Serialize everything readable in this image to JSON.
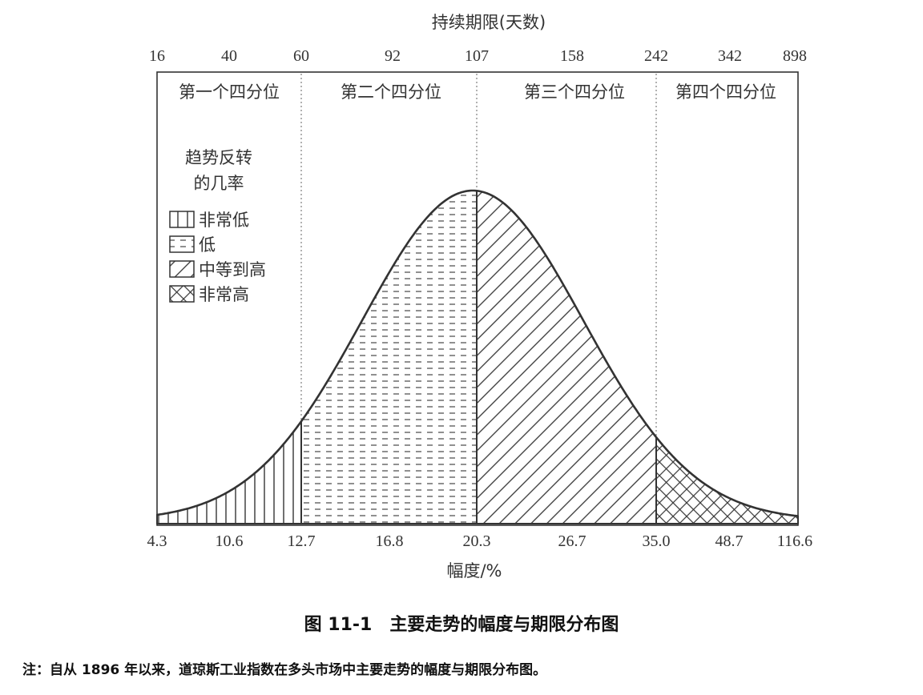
{
  "chart_data": {
    "type": "area",
    "top_axis_title": "持续期限(天数)",
    "top_ticks": [
      "16",
      "40",
      "60",
      "92",
      "107",
      "158",
      "242",
      "342",
      "898"
    ],
    "x_axis_title": "幅度/%",
    "bottom_ticks": [
      "4.3",
      "10.6",
      "12.7",
      "16.8",
      "20.3",
      "26.7",
      "35.0",
      "48.7",
      "116.6"
    ],
    "quartiles": [
      "第一个四分位",
      "第二个四分位",
      "第三个四分位",
      "第四个四分位"
    ],
    "quartile_boundary_ticks": [
      "12.7",
      "20.3",
      "35.0"
    ],
    "distribution": "bell-shaped (normal) curve peaking at 20.3",
    "legend_title_lines": [
      "趋势反转",
      "的几率"
    ],
    "legend": [
      {
        "label": "非常低",
        "pattern": "vertical-lines"
      },
      {
        "label": "低",
        "pattern": "dashes"
      },
      {
        "label": "中等到高",
        "pattern": "diagonal-lines"
      },
      {
        "label": "非常高",
        "pattern": "crosshatch"
      }
    ],
    "segment_patterns": [
      "vertical-lines",
      "dashes",
      "diagonal-lines",
      "crosshatch"
    ],
    "grid": false,
    "legend_position": "left"
  },
  "caption": "图 11-1　主要走势的幅度与期限分布图",
  "note": "注：自从 1896 年以来，道琼斯工业指数在多头市场中主要走势的幅度与期限分布图。"
}
